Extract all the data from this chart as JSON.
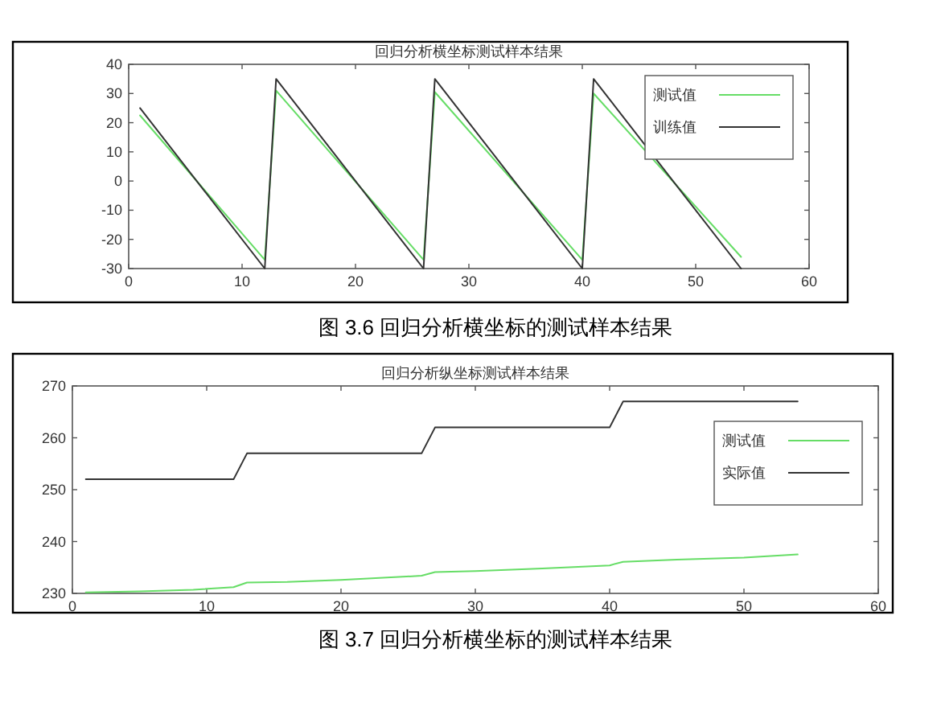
{
  "chart_data": [
    {
      "type": "line",
      "title": "回归分析横坐标测试样本结果",
      "xlim": [
        0,
        60
      ],
      "xticks": [
        0,
        10,
        20,
        30,
        40,
        50,
        60
      ],
      "ylim": [
        -30,
        40
      ],
      "yticks": [
        -30,
        -20,
        -10,
        0,
        10,
        20,
        30,
        40
      ],
      "legend": "top right",
      "annotations": [
        "图 3.6  回归分析横坐标的测试样本结果"
      ],
      "series": [
        {
          "name": "测试值",
          "color": "#66dd66",
          "x": [
            1,
            12,
            13,
            26,
            27,
            40,
            41,
            54
          ],
          "values": [
            22.5,
            -27,
            31,
            -27,
            30.5,
            -27,
            30,
            -26
          ]
        },
        {
          "name": "训练值",
          "color": "#333333",
          "x": [
            1,
            12,
            13,
            26,
            27,
            40,
            41,
            54
          ],
          "values": [
            25,
            -30,
            35,
            -30,
            35,
            -30,
            35,
            -30
          ]
        }
      ]
    },
    {
      "type": "line",
      "title": "回归分析纵坐标测试样本结果",
      "xlim": [
        0,
        60
      ],
      "xticks": [
        0,
        10,
        20,
        30,
        40,
        50,
        60
      ],
      "ylim": [
        230,
        270
      ],
      "yticks": [
        230,
        240,
        250,
        260,
        270
      ],
      "legend": "top right",
      "annotations": [
        "图 3.7  回归分析横坐标的测试样本结果"
      ],
      "series": [
        {
          "name": "测试值",
          "color": "#66dd66",
          "x": [
            1,
            5,
            9,
            12,
            13,
            16,
            20,
            26,
            27,
            30,
            35,
            40,
            41,
            45,
            50,
            54
          ],
          "values": [
            230.2,
            230.4,
            230.7,
            231.2,
            232.1,
            232.2,
            232.6,
            233.4,
            234.1,
            234.3,
            234.8,
            235.4,
            236.1,
            236.5,
            236.9,
            237.5
          ]
        },
        {
          "name": "实际值",
          "color": "#333333",
          "x": [
            1,
            12,
            13,
            26,
            27,
            40,
            41,
            54
          ],
          "values": [
            252,
            252,
            257,
            257,
            262,
            262,
            267,
            267
          ]
        }
      ]
    }
  ]
}
